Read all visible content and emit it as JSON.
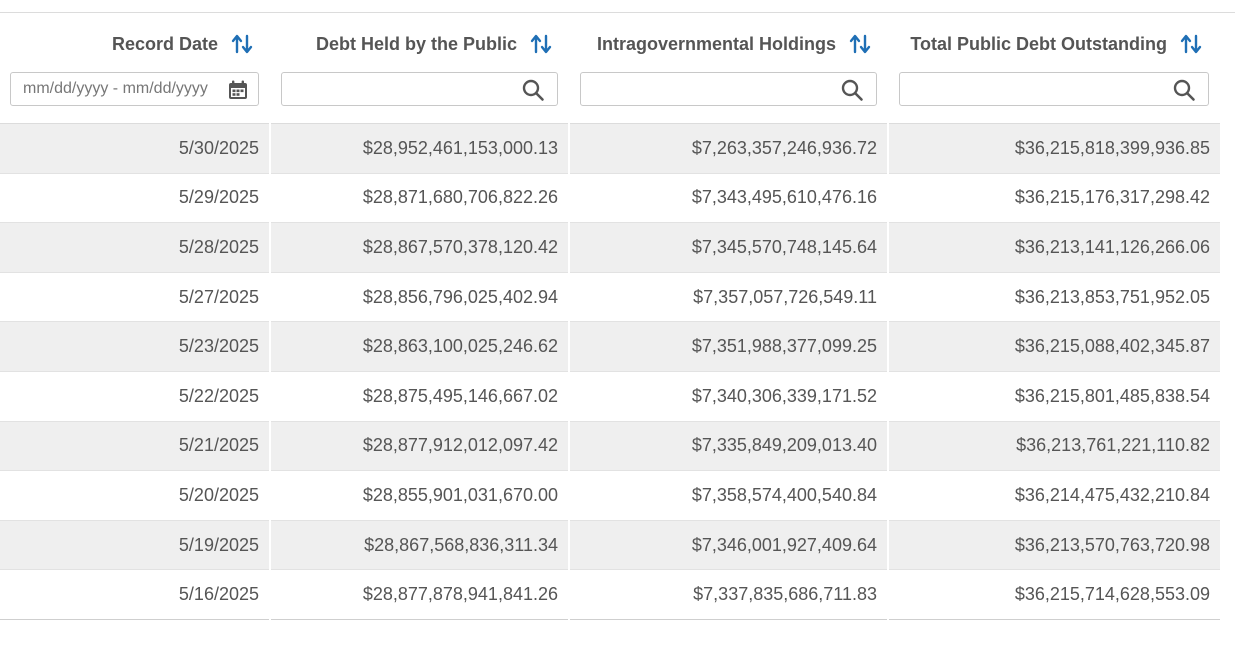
{
  "columns": [
    {
      "label": "Record Date",
      "sort_icon": "sort-arrows-icon"
    },
    {
      "label": "Debt Held by the Public",
      "sort_icon": "sort-arrows-icon"
    },
    {
      "label": "Intragovernmental Holdings",
      "sort_icon": "sort-arrows-icon"
    },
    {
      "label": "Total Public Debt Outstanding",
      "sort_icon": "sort-arrows-icon"
    }
  ],
  "filters": {
    "date_range": {
      "placeholder": "mm/dd/yyyy - mm/dd/yyyy",
      "value": "",
      "icon": "calendar-icon"
    },
    "debt_held_by_public": {
      "placeholder": "",
      "value": "",
      "icon": "search-icon"
    },
    "intragovernmental_holdings": {
      "placeholder": "",
      "value": "",
      "icon": "search-icon"
    },
    "total_public_debt": {
      "placeholder": "",
      "value": "",
      "icon": "search-icon"
    }
  },
  "rows": [
    [
      "5/30/2025",
      "$28,952,461,153,000.13",
      "$7,263,357,246,936.72",
      "$36,215,818,399,936.85"
    ],
    [
      "5/29/2025",
      "$28,871,680,706,822.26",
      "$7,343,495,610,476.16",
      "$36,215,176,317,298.42"
    ],
    [
      "5/28/2025",
      "$28,867,570,378,120.42",
      "$7,345,570,748,145.64",
      "$36,213,141,126,266.06"
    ],
    [
      "5/27/2025",
      "$28,856,796,025,402.94",
      "$7,357,057,726,549.11",
      "$36,213,853,751,952.05"
    ],
    [
      "5/23/2025",
      "$28,863,100,025,246.62",
      "$7,351,988,377,099.25",
      "$36,215,088,402,345.87"
    ],
    [
      "5/22/2025",
      "$28,875,495,146,667.02",
      "$7,340,306,339,171.52",
      "$36,215,801,485,838.54"
    ],
    [
      "5/21/2025",
      "$28,877,912,012,097.42",
      "$7,335,849,209,013.40",
      "$36,213,761,221,110.82"
    ],
    [
      "5/20/2025",
      "$28,855,901,031,670.00",
      "$7,358,574,400,540.84",
      "$36,214,475,432,210.84"
    ],
    [
      "5/19/2025",
      "$28,867,568,836,311.34",
      "$7,346,001,927,409.64",
      "$36,213,570,763,720.98"
    ],
    [
      "5/16/2025",
      "$28,877,878,941,841.26",
      "$7,337,835,686,711.83",
      "$36,215,714,628,553.09"
    ]
  ],
  "colors": {
    "accent": "#1f6fb5",
    "text": "#555555",
    "stripe": "#efefef"
  }
}
